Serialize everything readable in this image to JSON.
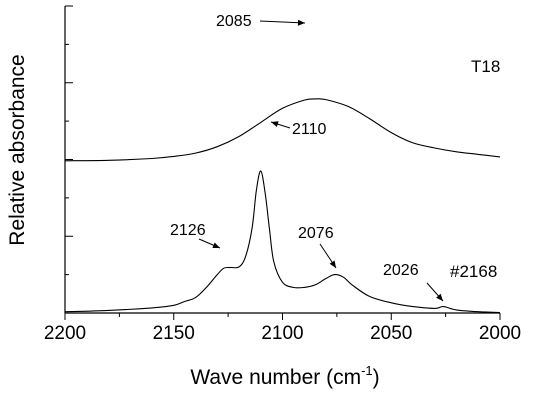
{
  "chart_data": {
    "type": "line",
    "xlabel": "Wave number (cm",
    "xlabel_sup": "-1",
    "xlabel_end": ")",
    "ylabel": "Relative absorbance",
    "xlim": [
      2200,
      2000
    ],
    "x_reversed": true,
    "x_ticks": [
      2200,
      2150,
      2100,
      2050,
      2000
    ],
    "x_tick_labels": [
      "2200",
      "2150",
      "2100",
      "2050",
      "2000"
    ],
    "y_ticks_shown_without_labels": true,
    "ylim": [
      0,
      1.2
    ],
    "series": [
      {
        "name": "T18",
        "x": [
          2200,
          2180,
          2160,
          2150,
          2140,
          2130,
          2120,
          2110,
          2100,
          2090,
          2085,
          2080,
          2070,
          2060,
          2050,
          2040,
          2030,
          2020,
          2010,
          2000
        ],
        "y": [
          0.595,
          0.597,
          0.604,
          0.612,
          0.625,
          0.65,
          0.69,
          0.745,
          0.8,
          0.832,
          0.837,
          0.834,
          0.808,
          0.76,
          0.705,
          0.665,
          0.645,
          0.63,
          0.62,
          0.61
        ]
      },
      {
        "name": "#2168",
        "x": [
          2200,
          2180,
          2160,
          2150,
          2145,
          2140,
          2135,
          2130,
          2127,
          2124,
          2120,
          2117,
          2114,
          2112,
          2110,
          2108,
          2106,
          2104,
          2100,
          2095,
          2090,
          2085,
          2080,
          2076,
          2072,
          2068,
          2060,
          2050,
          2040,
          2030,
          2026,
          2020,
          2010,
          2000
        ],
        "y": [
          0.005,
          0.01,
          0.02,
          0.03,
          0.045,
          0.06,
          0.1,
          0.15,
          0.175,
          0.178,
          0.18,
          0.22,
          0.33,
          0.48,
          0.555,
          0.47,
          0.33,
          0.2,
          0.12,
          0.1,
          0.1,
          0.11,
          0.135,
          0.15,
          0.14,
          0.11,
          0.065,
          0.04,
          0.025,
          0.018,
          0.025,
          0.012,
          0.005,
          0.002
        ]
      }
    ],
    "annotations": [
      {
        "text": "2085",
        "x": 2085,
        "series": "T18"
      },
      {
        "text": "2110",
        "x": 2110,
        "series": "#2168"
      },
      {
        "text": "2126",
        "x": 2126,
        "series": "#2168"
      },
      {
        "text": "2076",
        "x": 2076,
        "series": "#2168"
      },
      {
        "text": "2026",
        "x": 2026,
        "series": "#2168"
      }
    ],
    "series_labels": [
      "T18",
      "#2168"
    ],
    "grid": false
  }
}
